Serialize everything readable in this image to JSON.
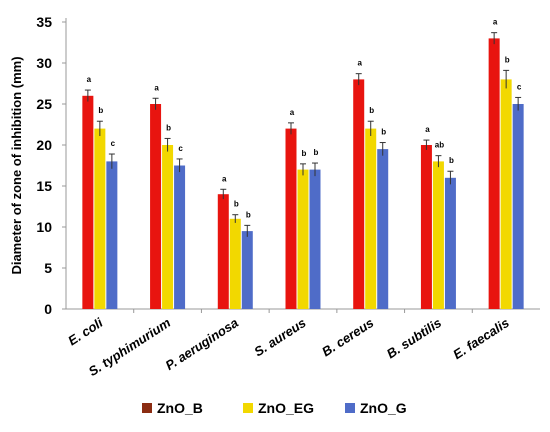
{
  "chart_data": {
    "type": "bar",
    "ylabel": "Diameter of zone of inhibition (mm)",
    "xlabel": "",
    "ylim": [
      0,
      35
    ],
    "yticks": [
      "0",
      "5",
      "10",
      "15",
      "20",
      "25",
      "30",
      "35"
    ],
    "grid": false,
    "legend_position": "bottom",
    "categories": [
      "E. coli",
      "S. typhimurium",
      "P. aeruginosa",
      "S. aureus",
      "B. cereus",
      "B. subtilis",
      "E. faecalis"
    ],
    "series": [
      {
        "name": "ZnO_B",
        "color": "#e8140f",
        "values": [
          26,
          25,
          14,
          22,
          28,
          20,
          33
        ],
        "errors": [
          0.7,
          0.7,
          0.6,
          0.7,
          0.7,
          0.6,
          0.7
        ],
        "labels": [
          "a",
          "a",
          "a",
          "a",
          "a",
          "a",
          "a"
        ]
      },
      {
        "name": "ZnO_EG",
        "color": "#f2d800",
        "values": [
          22,
          20,
          11,
          17,
          22,
          18,
          28
        ],
        "errors": [
          0.9,
          0.8,
          0.5,
          0.7,
          0.9,
          0.7,
          1.1
        ],
        "labels": [
          "b",
          "b",
          "b",
          "b",
          "b",
          "ab",
          "b"
        ]
      },
      {
        "name": "ZnO_G",
        "color": "#4f6cc8",
        "values": [
          18,
          17.5,
          9.5,
          17,
          19.5,
          16,
          25
        ],
        "errors": [
          0.9,
          0.8,
          0.7,
          0.8,
          0.8,
          0.8,
          0.8
        ],
        "labels": [
          "c",
          "c",
          "b",
          "b",
          "b",
          "b",
          "c"
        ]
      }
    ],
    "legend": [
      {
        "label": "ZnO_B",
        "color": "#8b2c12"
      },
      {
        "label": "ZnO_EG",
        "color": "#f2d800"
      },
      {
        "label": "ZnO_G",
        "color": "#4f6cc8"
      }
    ]
  }
}
